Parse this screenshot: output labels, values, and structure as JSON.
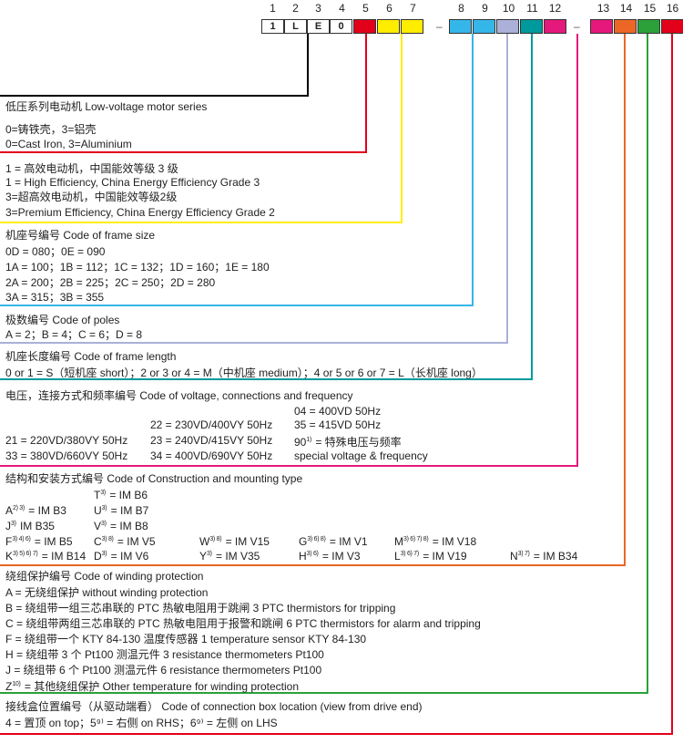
{
  "header": {
    "positions": [
      "1",
      "2",
      "3",
      "4",
      "5",
      "6",
      "7",
      "8",
      "9",
      "10",
      "11",
      "12",
      "13",
      "14",
      "15",
      "16"
    ],
    "fixed_codes": [
      "1",
      "L",
      "E",
      "0"
    ],
    "dash": "–",
    "colors": {
      "black": "#000000",
      "red": "#e3001b",
      "yellow": "#ffed00",
      "blue": "#35b6e9",
      "lavender": "#aab0d8",
      "teal": "#009a9c",
      "pink": "#e5197b",
      "orange": "#ec6726",
      "green": "#2ca13a"
    }
  },
  "series": {
    "title": "低压系列电动机   Low-voltage motor series"
  },
  "housing": {
    "lines": [
      "0=铸铁壳，3=铝壳",
      "0=Cast Iron, 3=Aluminium"
    ]
  },
  "efficiency": {
    "lines": [
      "1 = 高效电动机，中国能效等级 3 级",
      "1 = High Efficiency, China Energy Efficiency Grade 3",
      "3=超高效电动机，中国能效等级2级",
      "3=Premium Efficiency, China Energy Efficiency Grade 2"
    ]
  },
  "frame_size": {
    "title": "机座号编号   Code of frame size",
    "lines": [
      "0D = 080；0E = 090",
      "1A = 100；1B = 112；1C = 132；1D = 160；1E = 180",
      "2A = 200；2B = 225；2C = 250；2D = 280",
      "3A = 315；3B = 355"
    ]
  },
  "poles": {
    "title": "极数编号   Code of poles",
    "line": "A = 2；B = 4；C = 6；D = 8"
  },
  "frame_length": {
    "title": "机座长度编号   Code of frame length",
    "line": "0 or 1 = S（短机座 short）；2 or 3 or 4 = M（中机座 medium）；4 or 5 or 6 or 7 = L（长机座 long）"
  },
  "voltage": {
    "title": "电压，连接方式和频率编号   Code of voltage, connections and frequency",
    "v04": "04 = 400VD 50Hz",
    "v22": "22 = 230VD/400VY 50Hz",
    "v35": "35 = 415VD 50Hz",
    "v21": "21 = 220VD/380VY 50Hz",
    "v23": "23 = 240VD/415VY 50Hz",
    "v90_code": "90",
    "v90_sup": "1)",
    "v90_text": "= 特殊电压与频率",
    "v33": "33 = 380VD/660VY 50Hz",
    "v34": "34 = 400VD/690VY 50Hz",
    "special": "special voltage & frequency"
  },
  "construction": {
    "title": "结构和安装方式编号   Code of Construction and mounting type",
    "items": [
      {
        "code": "T",
        "sup": "3)",
        "text": "= IM B6"
      },
      {
        "code": "A",
        "sup": "2) 3)",
        "text": "= IM B3"
      },
      {
        "code": "U",
        "sup": "3)",
        "text": "= IM B7"
      },
      {
        "code": "J",
        "sup": "3)",
        "text": "IM B35"
      },
      {
        "code": "V",
        "sup": "3)",
        "text": "= IM B8"
      },
      {
        "code": "F",
        "sup": "3) 4) 6)",
        "text": "= IM B5"
      },
      {
        "code": "C",
        "sup": "3) 8)",
        "text": "= IM V5"
      },
      {
        "code": "W",
        "sup": "3) 8)",
        "text": "= IM V15"
      },
      {
        "code": "G",
        "sup": "3) 6) 8)",
        "text": "= IM V1"
      },
      {
        "code": "M",
        "sup": "3) 6) 7) 8)",
        "text": "= IM V18"
      },
      {
        "code": "K",
        "sup": "3) 5) 6) 7)",
        "text": "= IM B14"
      },
      {
        "code": "D",
        "sup": "3)",
        "text": "= IM V6"
      },
      {
        "code": "Y",
        "sup": "3)",
        "text": "= IM V35"
      },
      {
        "code": "H",
        "sup": "3) 6)",
        "text": "= IM V3"
      },
      {
        "code": "L",
        "sup": "3) 6) 7)",
        "text": "= IM V19"
      },
      {
        "code": "N",
        "sup": "3) 7)",
        "text": "= IM B34"
      }
    ]
  },
  "winding": {
    "title": "绕组保护编号   Code of winding protection",
    "lines": [
      "A = 无绕组保护    without winding protection",
      "B = 绕组带一组三芯串联的 PTC 热敏电阻用于跳闸   3 PTC thermistors for tripping",
      "C = 绕组带两组三芯串联的 PTC 热敏电阻用于报警和跳闸   6 PTC thermistors for alarm and tripping",
      "F = 绕组带一个 KTY 84-130 温度传感器    1 temperature sensor KTY 84-130",
      "H = 绕组带 3 个 Pt100 测温元件  3 resistance thermometers Pt100",
      "J = 绕组带 6 个 Pt100 测温元件   6 resistance thermometers Pt100"
    ],
    "z_code": "Z",
    "z_sup": "10)",
    "z_text": "= 其他绕组保护   Other temperature for winding protection"
  },
  "connection_box": {
    "title": "接线盒位置编号（从驱动端看）   Code of connection box location (view from drive end)",
    "line": "4 = 置顶    on top；5⁹⁾ = 右侧    on RHS；6⁹⁾ = 左侧    on LHS"
  }
}
